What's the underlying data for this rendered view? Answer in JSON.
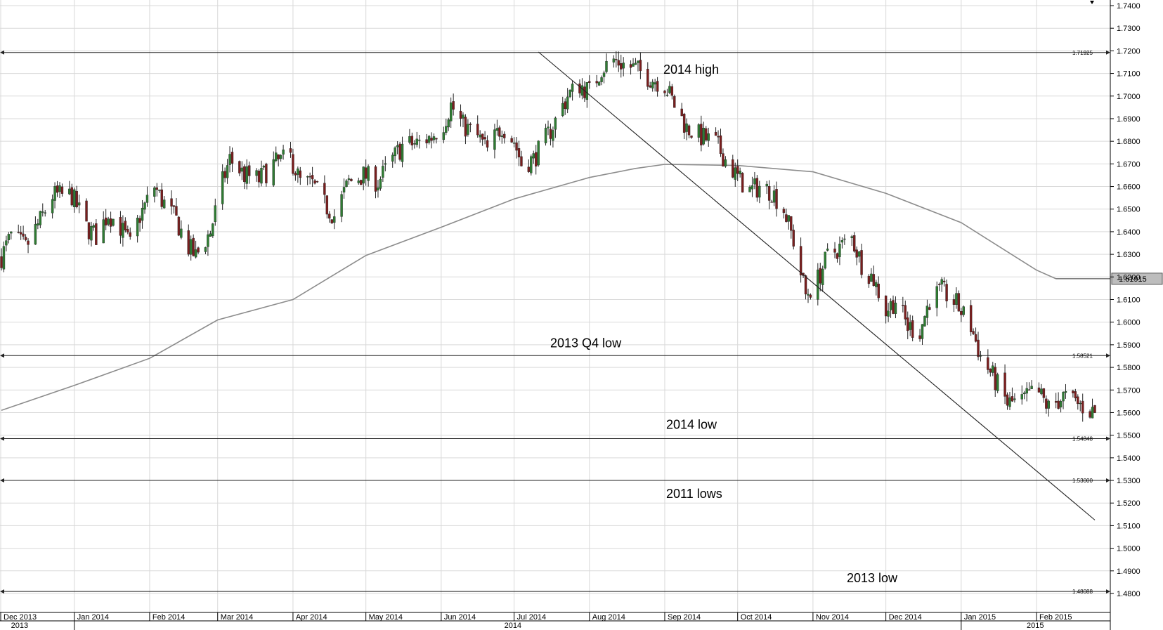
{
  "chart_data": {
    "type": "candlestick",
    "y_ticks": [
      "1.4800",
      "1.4900",
      "1.5000",
      "1.5100",
      "1.5200",
      "1.5300",
      "1.5400",
      "1.5500",
      "1.5600",
      "1.5700",
      "1.5800",
      "1.5900",
      "1.6000",
      "1.6100",
      "1.6200",
      "1.6300",
      "1.6400",
      "1.6500",
      "1.6600",
      "1.6700",
      "1.6800",
      "1.6900",
      "1.7000",
      "1.7100",
      "1.7200",
      "1.7300",
      "1.7400"
    ],
    "ylim": [
      1.477,
      1.741
    ],
    "x_range": [
      "2013-12-02",
      "2015-02-25"
    ],
    "month_labels": [
      {
        "date": "2013-12-01",
        "label": "Dec 2013"
      },
      {
        "date": "2014-01-01",
        "label": "Jan 2014"
      },
      {
        "date": "2014-02-01",
        "label": "Feb 2014"
      },
      {
        "date": "2014-03-01",
        "label": "Mar 2014"
      },
      {
        "date": "2014-04-01",
        "label": "Apr 2014"
      },
      {
        "date": "2014-05-01",
        "label": "May 2014"
      },
      {
        "date": "2014-06-01",
        "label": "Jun 2014"
      },
      {
        "date": "2014-07-01",
        "label": "Jul 2014"
      },
      {
        "date": "2014-08-01",
        "label": "Aug 2014"
      },
      {
        "date": "2014-09-01",
        "label": "Sep 2014"
      },
      {
        "date": "2014-10-01",
        "label": "Oct 2014"
      },
      {
        "date": "2014-11-01",
        "label": "Nov 2014"
      },
      {
        "date": "2014-12-01",
        "label": "Dec 2014"
      },
      {
        "date": "2015-01-01",
        "label": "Jan 2015"
      },
      {
        "date": "2015-02-01",
        "label": "Feb 2015"
      }
    ],
    "year_labels": [
      {
        "date": "2013-12-10",
        "label": "2013"
      },
      {
        "date": "2014-07-01",
        "label": "2014"
      },
      {
        "date": "2015-02-01",
        "label": "2015"
      }
    ],
    "levels": [
      {
        "value": 1.71925,
        "label": "1.71925",
        "annotation": "2014 high"
      },
      {
        "value": 1.58521,
        "label": "1.58521",
        "annotation": "2013 Q4 low"
      },
      {
        "value": 1.54848,
        "label": "1.54848",
        "annotation": "2014 low"
      },
      {
        "value": 1.53,
        "label": "1.53000",
        "annotation": "2011 lows"
      },
      {
        "value": 1.48088,
        "label": "1.48088",
        "annotation": "2013 low"
      }
    ],
    "last_price": "1.61915",
    "trendline": {
      "start": [
        "2014-07-11",
        1.7195
      ],
      "end": [
        "2015-02-25",
        1.5125
      ]
    },
    "moving_average": [
      [
        "2013-12-02",
        1.561
      ],
      [
        "2014-01-01",
        1.572
      ],
      [
        "2014-02-01",
        1.584
      ],
      [
        "2014-03-01",
        1.601
      ],
      [
        "2014-04-01",
        1.61
      ],
      [
        "2014-05-01",
        1.6295
      ],
      [
        "2014-06-01",
        1.642
      ],
      [
        "2014-07-01",
        1.6545
      ],
      [
        "2014-08-01",
        1.664
      ],
      [
        "2014-08-20",
        1.668
      ],
      [
        "2014-09-01",
        1.6698
      ],
      [
        "2014-10-01",
        1.6693
      ],
      [
        "2014-11-01",
        1.6665
      ],
      [
        "2014-12-01",
        1.657
      ],
      [
        "2015-01-01",
        1.644
      ],
      [
        "2015-02-01",
        1.623
      ],
      [
        "2015-02-09",
        1.6192
      ]
    ],
    "price_path": [
      [
        "2013-12-02",
        1.629
      ],
      [
        "2013-12-06",
        1.638
      ],
      [
        "2013-12-12",
        1.633
      ],
      [
        "2013-12-18",
        1.645
      ],
      [
        "2013-12-23",
        1.656
      ],
      [
        "2013-12-31",
        1.656
      ],
      [
        "2014-01-06",
        1.642
      ],
      [
        "2014-01-10",
        1.638
      ],
      [
        "2014-01-15",
        1.648
      ],
      [
        "2014-01-20",
        1.642
      ],
      [
        "2014-01-24",
        1.634
      ],
      [
        "2014-01-28",
        1.647
      ],
      [
        "2014-02-03",
        1.66
      ],
      [
        "2014-02-06",
        1.654
      ],
      [
        "2014-02-12",
        1.645
      ],
      [
        "2014-02-17",
        1.633
      ],
      [
        "2014-02-20",
        1.629
      ],
      [
        "2014-02-26",
        1.64
      ],
      [
        "2014-03-03",
        1.662
      ],
      [
        "2014-03-06",
        1.672
      ],
      [
        "2014-03-12",
        1.665
      ],
      [
        "2014-03-18",
        1.663
      ],
      [
        "2014-03-24",
        1.67
      ],
      [
        "2014-03-31",
        1.673
      ],
      [
        "2014-04-04",
        1.662
      ],
      [
        "2014-04-09",
        1.661
      ],
      [
        "2014-04-14",
        1.652
      ],
      [
        "2014-04-18",
        1.647
      ],
      [
        "2014-04-24",
        1.662
      ],
      [
        "2014-04-30",
        1.665
      ],
      [
        "2014-05-06",
        1.662
      ],
      [
        "2014-05-12",
        1.672
      ],
      [
        "2014-05-16",
        1.678
      ],
      [
        "2014-05-22",
        1.679
      ],
      [
        "2014-05-28",
        1.682
      ],
      [
        "2014-06-02",
        1.688
      ],
      [
        "2014-06-05",
        1.696
      ],
      [
        "2014-06-10",
        1.687
      ],
      [
        "2014-06-16",
        1.682
      ],
      [
        "2014-06-20",
        1.676
      ],
      [
        "2014-06-26",
        1.687
      ],
      [
        "2014-07-01",
        1.68
      ],
      [
        "2014-07-04",
        1.67
      ],
      [
        "2014-07-09",
        1.672
      ],
      [
        "2014-07-14",
        1.681
      ],
      [
        "2014-07-18",
        1.689
      ],
      [
        "2014-07-23",
        1.7
      ],
      [
        "2014-07-28",
        1.705
      ],
      [
        "2014-08-01",
        1.702
      ],
      [
        "2014-08-06",
        1.712
      ],
      [
        "2014-08-11",
        1.716
      ],
      [
        "2014-08-15",
        1.714
      ],
      [
        "2014-08-20",
        1.712
      ],
      [
        "2014-08-26",
        1.708
      ],
      [
        "2014-09-01",
        1.705
      ],
      [
        "2014-09-05",
        1.696
      ],
      [
        "2014-09-10",
        1.686
      ],
      [
        "2014-09-16",
        1.682
      ],
      [
        "2014-09-22",
        1.679
      ],
      [
        "2014-09-26",
        1.672
      ],
      [
        "2014-10-01",
        1.664
      ],
      [
        "2014-10-06",
        1.658
      ],
      [
        "2014-10-10",
        1.66
      ],
      [
        "2014-10-15",
        1.658
      ],
      [
        "2014-10-20",
        1.65
      ],
      [
        "2014-10-24",
        1.636
      ],
      [
        "2014-10-29",
        1.612
      ],
      [
        "2014-11-03",
        1.619
      ],
      [
        "2014-11-07",
        1.629
      ],
      [
        "2014-11-12",
        1.633
      ],
      [
        "2014-11-17",
        1.637
      ],
      [
        "2014-11-21",
        1.626
      ],
      [
        "2014-11-26",
        1.619
      ],
      [
        "2014-12-01",
        1.605
      ],
      [
        "2014-12-05",
        1.61
      ],
      [
        "2014-12-10",
        1.598
      ],
      [
        "2014-12-15",
        1.596
      ],
      [
        "2014-12-19",
        1.61
      ],
      [
        "2014-12-24",
        1.614
      ],
      [
        "2014-12-30",
        1.608
      ],
      [
        "2015-01-05",
        1.598
      ],
      [
        "2015-01-09",
        1.585
      ],
      [
        "2015-01-14",
        1.576
      ],
      [
        "2015-01-20",
        1.564
      ],
      [
        "2015-01-26",
        1.565
      ],
      [
        "2015-02-01",
        1.57
      ],
      [
        "2015-02-06",
        1.562
      ],
      [
        "2015-02-12",
        1.567
      ],
      [
        "2015-02-25",
        1.56
      ]
    ]
  }
}
